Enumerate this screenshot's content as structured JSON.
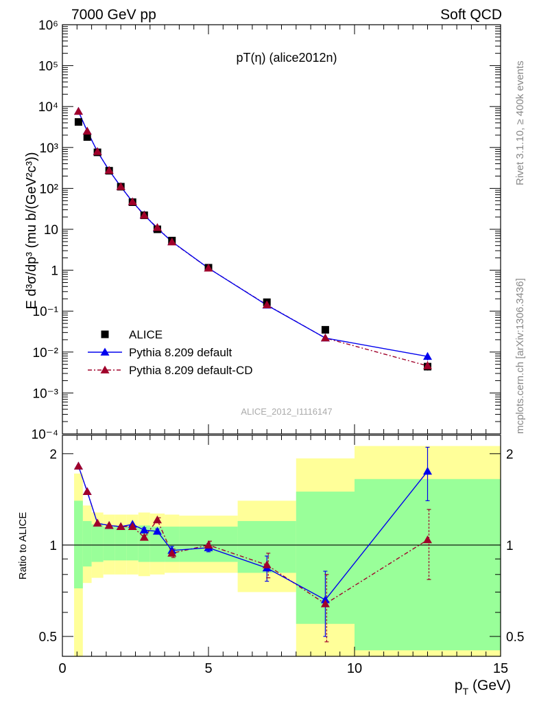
{
  "header": {
    "left": "7000 GeV pp",
    "right": "Soft QCD",
    "plot_title": "pT(η) (alice2012n)",
    "watermark": "ALICE_2012_I1116147",
    "side_top": "Rivet 3.1.10, ≥ 400k events",
    "side_bottom": "mcplots.cern.ch [arXiv:1306.3436]"
  },
  "axes": {
    "y_main_label": "E d³σ/dp³ (mu b/(GeV²c³))",
    "y_ratio_label": "Ratio to ALICE",
    "x_label": "p_T (GeV)",
    "x_label_main": "p",
    "x_label_sub": "T",
    "x_label_unit": " (GeV)",
    "x_ticks": [
      "0",
      "5",
      "10",
      "15"
    ],
    "ratio_ticks": [
      "0.5",
      "1",
      "2"
    ]
  },
  "legend": {
    "items": [
      {
        "name": "ALICE",
        "marker": "square",
        "line": "none",
        "color": "#000000"
      },
      {
        "name": "Pythia 8.209 default",
        "marker": "triangle",
        "line": "solid",
        "color": "#0000ee"
      },
      {
        "name": "Pythia 8.209 default-CD",
        "marker": "triangle",
        "line": "dashdot",
        "color": "#a0002a"
      }
    ]
  },
  "colors": {
    "data": "#000000",
    "default": "#0000ee",
    "cd": "#a0002a",
    "band_inner": "#99ff99",
    "band_outer": "#ffff99"
  },
  "chart_data": [
    {
      "type": "scatter",
      "panel": "main",
      "title": "pT(η) (alice2012n)",
      "ylabel": "E d³σ/dp³ (mu b/(GeV²c³))",
      "xlim": [
        0,
        15
      ],
      "ylim": [
        0.0001,
        1000000
      ],
      "yscale": "log",
      "y_ticks": [
        0.0001,
        0.001,
        0.01,
        0.1,
        1,
        10,
        100,
        1000,
        10000,
        100000,
        1000000
      ],
      "y_tick_labels": [
        "10⁻⁴",
        "10⁻³",
        "10⁻²",
        "10⁻¹",
        "1",
        "10",
        "10²",
        "10³",
        "10⁴",
        "10⁵",
        "10⁶"
      ],
      "x": [
        0.55,
        0.85,
        1.2,
        1.6,
        2.0,
        2.4,
        2.8,
        3.25,
        3.75,
        5.0,
        7.0,
        9.0,
        12.5
      ],
      "series": [
        {
          "name": "ALICE",
          "values": [
            4200,
            1800,
            760,
            270,
            110,
            46,
            22,
            10,
            5.3,
            1.15,
            0.165,
            0.035,
            0.0044
          ]
        },
        {
          "name": "Pythia 8.209 default",
          "values": [
            7600,
            2500,
            790,
            275,
            110,
            47,
            22.5,
            10.5,
            5.0,
            1.12,
            0.14,
            0.022,
            0.0078
          ]
        },
        {
          "name": "Pythia 8.209 default-CD",
          "values": [
            7600,
            2500,
            790,
            275,
            110,
            47,
            22.0,
            11.0,
            4.9,
            1.12,
            0.142,
            0.022,
            0.0046
          ]
        }
      ],
      "legend_position": "lower-left"
    },
    {
      "type": "scatter",
      "panel": "ratio",
      "ylabel": "Ratio to ALICE",
      "xlabel": "p_T (GeV)",
      "xlim": [
        0,
        15
      ],
      "ylim": [
        0.43,
        2.3
      ],
      "yscale": "log",
      "y_ticks": [
        0.5,
        1,
        2
      ],
      "reference_line": 1,
      "x": [
        0.55,
        0.85,
        1.2,
        1.6,
        2.0,
        2.4,
        2.8,
        3.25,
        3.75,
        5.0,
        7.0,
        9.0,
        12.5
      ],
      "series": [
        {
          "name": "Pythia 8.209 default",
          "values": [
            1.82,
            1.5,
            1.18,
            1.16,
            1.15,
            1.17,
            1.12,
            1.11,
            0.96,
            0.98,
            0.84,
            0.66,
            1.75
          ],
          "errors": [
            0.01,
            0.01,
            0.01,
            0.01,
            0.01,
            0.01,
            0.02,
            0.02,
            0.03,
            0.03,
            0.08,
            0.16,
            0.35
          ]
        },
        {
          "name": "Pythia 8.209 default-CD",
          "values": [
            1.82,
            1.5,
            1.18,
            1.16,
            1.15,
            1.15,
            1.06,
            1.21,
            0.94,
            1.0,
            0.86,
            0.64,
            1.04
          ],
          "errors": [
            0.01,
            0.01,
            0.01,
            0.01,
            0.01,
            0.01,
            0.02,
            0.02,
            0.03,
            0.03,
            0.08,
            0.16,
            0.27
          ]
        }
      ],
      "bands": [
        {
          "x0": 0.4,
          "x1": 0.7,
          "inner": [
            0.72,
            1.4
          ],
          "outer": [
            0.43,
            1.72
          ]
        },
        {
          "x0": 0.7,
          "x1": 1.0,
          "inner": [
            0.85,
            1.2
          ],
          "outer": [
            0.75,
            1.35
          ]
        },
        {
          "x0": 1.0,
          "x1": 1.4,
          "inner": [
            0.88,
            1.17
          ],
          "outer": [
            0.78,
            1.28
          ]
        },
        {
          "x0": 1.4,
          "x1": 1.8,
          "inner": [
            0.89,
            1.15
          ],
          "outer": [
            0.8,
            1.26
          ]
        },
        {
          "x0": 1.8,
          "x1": 2.2,
          "inner": [
            0.89,
            1.15
          ],
          "outer": [
            0.8,
            1.26
          ]
        },
        {
          "x0": 2.2,
          "x1": 2.6,
          "inner": [
            0.89,
            1.15
          ],
          "outer": [
            0.8,
            1.26
          ]
        },
        {
          "x0": 2.6,
          "x1": 3.0,
          "inner": [
            0.88,
            1.16
          ],
          "outer": [
            0.79,
            1.28
          ]
        },
        {
          "x0": 3.0,
          "x1": 3.5,
          "inner": [
            0.88,
            1.15
          ],
          "outer": [
            0.8,
            1.27
          ]
        },
        {
          "x0": 3.5,
          "x1": 4.0,
          "inner": [
            0.88,
            1.15
          ],
          "outer": [
            0.81,
            1.26
          ]
        },
        {
          "x0": 4.0,
          "x1": 6.0,
          "inner": [
            0.88,
            1.15
          ],
          "outer": [
            0.81,
            1.25
          ]
        },
        {
          "x0": 6.0,
          "x1": 8.0,
          "inner": [
            0.81,
            1.2
          ],
          "outer": [
            0.7,
            1.4
          ]
        },
        {
          "x0": 8.0,
          "x1": 10.0,
          "inner": [
            0.55,
            1.5
          ],
          "outer": [
            0.43,
            1.93
          ]
        },
        {
          "x0": 10.0,
          "x1": 15.0,
          "inner": [
            0.45,
            1.65
          ],
          "outer": [
            0.43,
            2.12
          ]
        }
      ]
    }
  ]
}
